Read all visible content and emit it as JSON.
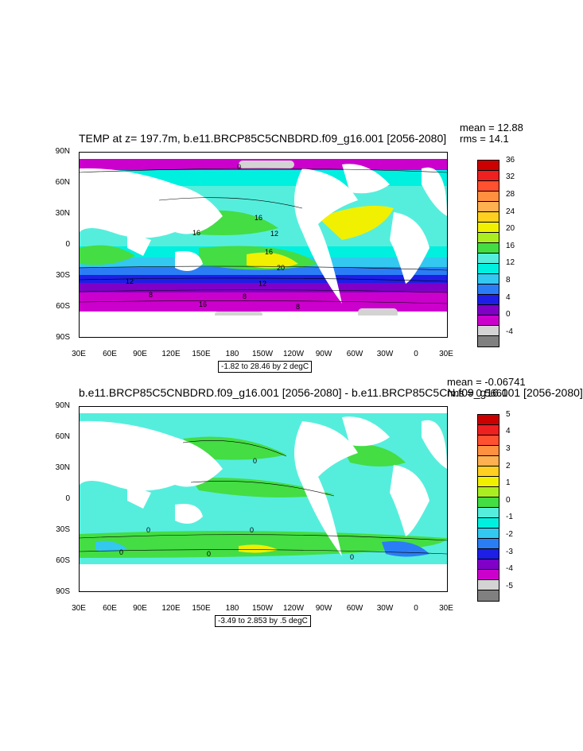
{
  "colors": {
    "temp_levels": [
      "#808080",
      "#d3d3d3",
      "#cc00cc",
      "#8000c8",
      "#1e1ee6",
      "#2b7df5",
      "#33c8f0",
      "#00f0e0",
      "#55eedd",
      "#44dd44",
      "#aaee22",
      "#f0f000",
      "#ffd020",
      "#ffb050",
      "#ff9040",
      "#ff5030",
      "#ee2020",
      "#cc0000"
    ],
    "land": "#ffffff"
  },
  "panel1": {
    "title": "TEMP at z= 197.7m, b.e11.BRCP85C5CNBDRD.f09_g16.001 [2056-2080]",
    "mean": "mean = 12.88",
    "rms": "rms = 14.1",
    "range_label": "-1.82 to 28.46 by 2 degC",
    "contour_labels": [
      "0",
      "16",
      "16",
      "12",
      "16",
      "20",
      "12",
      "12",
      "8",
      "8",
      "16",
      "8"
    ],
    "colorbar_labels": [
      "36",
      "32",
      "28",
      "24",
      "20",
      "16",
      "12",
      "8",
      "4",
      "0",
      "-4"
    ]
  },
  "panel2": {
    "title": "b.e11.BRCP85C5CNBDRD.f09_g16.001 [2056-2080] - b.e11.BRCP85C5CN.f09_g16.001 [2056-2080]",
    "mean": "mean = -0.06741",
    "rms": "rms = 0.5661",
    "range_label": "-3.49 to 2.853 by .5 degC",
    "contour_labels": [
      "0",
      "0",
      "0",
      "0",
      "0",
      "0"
    ],
    "colorbar_labels": [
      "5",
      "4",
      "3",
      "2",
      "1",
      "0",
      "-1",
      "-2",
      "-3",
      "-4",
      "-5"
    ]
  },
  "axes": {
    "y_labels": [
      "90N",
      "60N",
      "30N",
      "0",
      "30S",
      "60S",
      "90S"
    ],
    "x_labels": [
      "30E",
      "60E",
      "90E",
      "120E",
      "150E",
      "180",
      "150W",
      "120W",
      "90W",
      "60W",
      "30W",
      "0",
      "30E"
    ]
  },
  "chart_data": [
    {
      "type": "heatmap",
      "title": "TEMP at z= 197.7m, b.e11.BRCP85C5CNBDRD.f09_g16.001 [2056-2080]",
      "units": "degC",
      "mean": 12.88,
      "rms": 14.1,
      "data_min": -1.82,
      "data_max": 28.46,
      "contour_interval": 2,
      "colorbar_range": [
        -4,
        36
      ],
      "xlim": [
        "30E",
        "30E"
      ],
      "ylim": [
        "90S",
        "90N"
      ]
    },
    {
      "type": "heatmap",
      "title": "b.e11.BRCP85C5CNBDRD.f09_g16.001 [2056-2080] - b.e11.BRCP85C5CN.f09_g16.001 [2056-2080]",
      "units": "degC",
      "mean": -0.06741,
      "rms": 0.5661,
      "data_min": -3.49,
      "data_max": 2.853,
      "contour_interval": 0.5,
      "colorbar_range": [
        -5,
        5
      ],
      "xlim": [
        "30E",
        "30E"
      ],
      "ylim": [
        "90S",
        "90N"
      ]
    }
  ]
}
